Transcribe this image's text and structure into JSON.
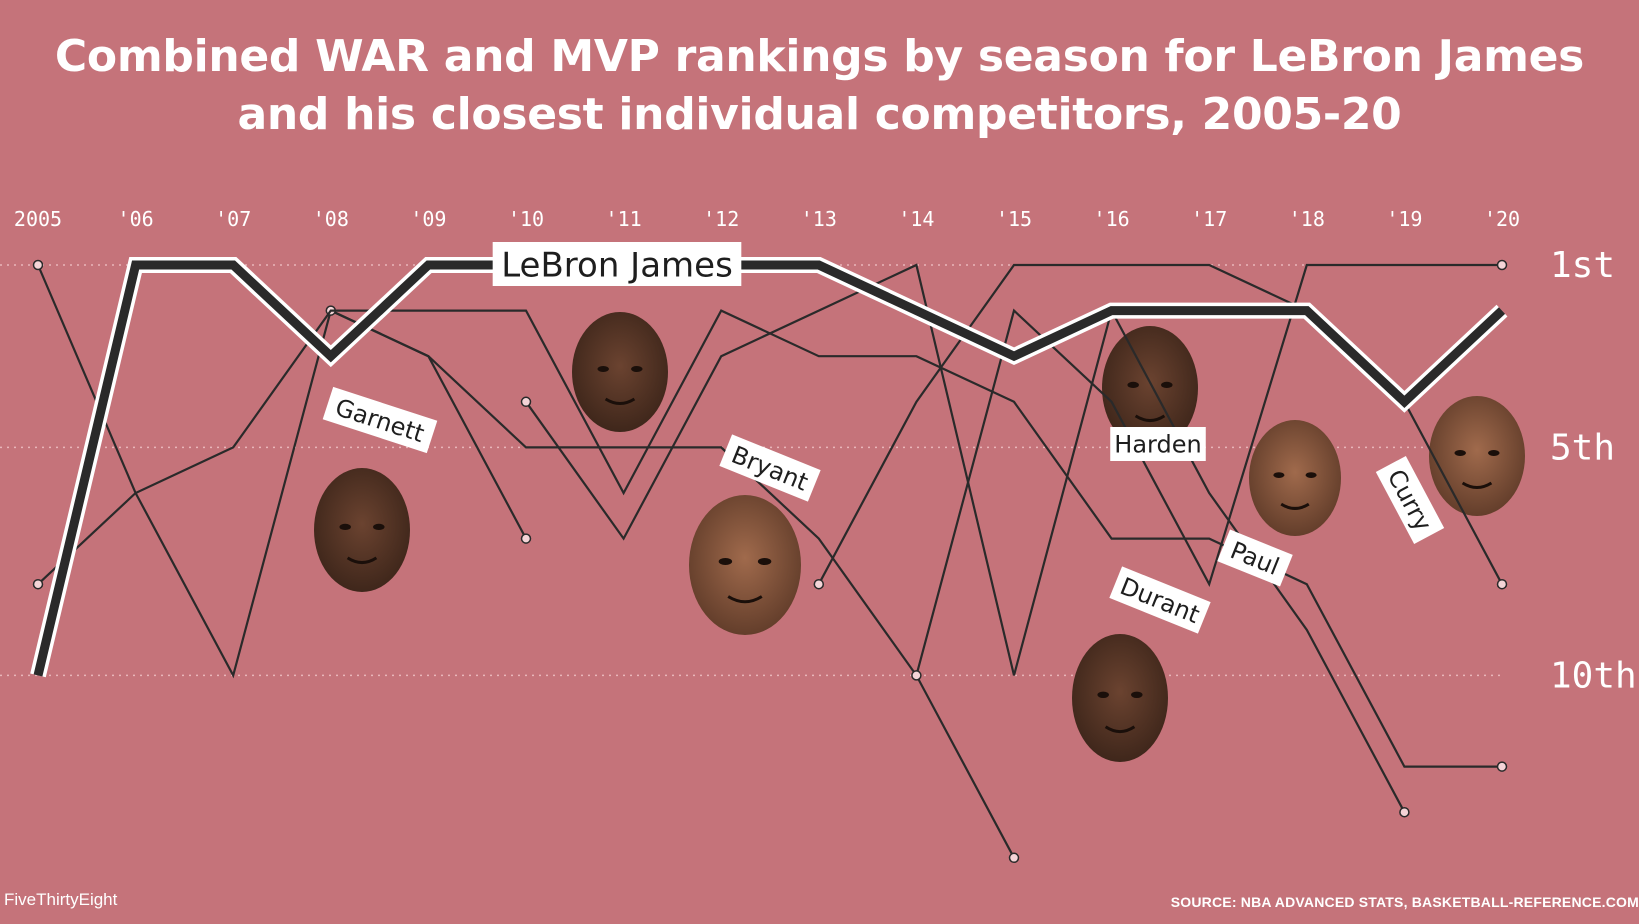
{
  "title_lines": [
    "Combined WAR and MVP rankings by season for LeBron James",
    "and his closest individual competitors, 2005-20"
  ],
  "footer": {
    "brand": "FiveThirtyEight",
    "source": "SOURCE: NBA ADVANCED STATS, BASKETBALL-REFERENCE.COM"
  },
  "chart_data": {
    "type": "line",
    "title": "Combined WAR and MVP rankings by season for LeBron James and his closest individual competitors, 2005-20",
    "x": [
      2005,
      2006,
      2007,
      2008,
      2009,
      2010,
      2011,
      2012,
      2013,
      2014,
      2015,
      2016,
      2017,
      2018,
      2019,
      2020
    ],
    "x_tick_labels": [
      "2005",
      "'06",
      "'07",
      "'08",
      "'09",
      "'10",
      "'11",
      "'12",
      "'13",
      "'14",
      "'15",
      "'16",
      "'17",
      "'18",
      "'19",
      "'20"
    ],
    "y_ticks": [
      1,
      5,
      10
    ],
    "y_tick_labels": [
      "1st",
      "5th",
      "10th"
    ],
    "ylim": [
      1,
      14
    ],
    "y_inverted": true,
    "grid": "dotted horizontal at 1st, 5th, 10th",
    "colors": {
      "background": "#c5737a",
      "line": "#2a2a2a",
      "highlight_outline": "#ffffff",
      "text": "#ffffff"
    },
    "series": [
      {
        "name": "LeBron James",
        "highlight": true,
        "x": [
          2005,
          2006,
          2007,
          2008,
          2009,
          2010,
          2011,
          2012,
          2013,
          2014,
          2015,
          2016,
          2017,
          2018,
          2019,
          2020
        ],
        "y": [
          10,
          1,
          1,
          3,
          1,
          1,
          1,
          1,
          1,
          2,
          3,
          2,
          2,
          2,
          4,
          2
        ]
      },
      {
        "name": "Garnett",
        "x": [
          2005,
          2006,
          2007,
          2008,
          2009,
          2010
        ],
        "y": [
          1,
          6,
          10,
          2,
          3,
          7
        ]
      },
      {
        "name": "Bryant",
        "x": [
          2008,
          2009,
          2010,
          2011,
          2012,
          2013,
          2014,
          2015
        ],
        "y": [
          2,
          3,
          5,
          5,
          5,
          7,
          10,
          14
        ]
      },
      {
        "name": "Harden",
        "x": [
          2013,
          2014,
          2015,
          2016,
          2017,
          2018,
          2019,
          2020
        ],
        "y": [
          8,
          4,
          1,
          1,
          1,
          2,
          4,
          8
        ]
      },
      {
        "name": "Paul",
        "x": [
          2005,
          2006,
          2007,
          2008,
          2009,
          2010,
          2011,
          2012,
          2013,
          2014,
          2015,
          2016,
          2017,
          2018,
          2019,
          2020
        ],
        "y": [
          8,
          6,
          5,
          2,
          2,
          2,
          6,
          2,
          3,
          3,
          4,
          7,
          7,
          8,
          12,
          12
        ]
      },
      {
        "name": "Durant",
        "x": [
          2010,
          2011,
          2012,
          2013,
          2014,
          2015,
          2016,
          2017,
          2018,
          2019
        ],
        "y": [
          4,
          7,
          3,
          2,
          1,
          10,
          2,
          6,
          9,
          13
        ]
      },
      {
        "name": "Curry",
        "x": [
          2014,
          2015,
          2016,
          2017,
          2018,
          2019,
          2020
        ],
        "y": [
          10,
          2,
          4,
          8,
          1,
          1,
          1
        ]
      }
    ],
    "annotations": [
      "LeBron James",
      "Garnett",
      "Bryant",
      "Harden",
      "Paul",
      "Durant",
      "Curry"
    ]
  }
}
